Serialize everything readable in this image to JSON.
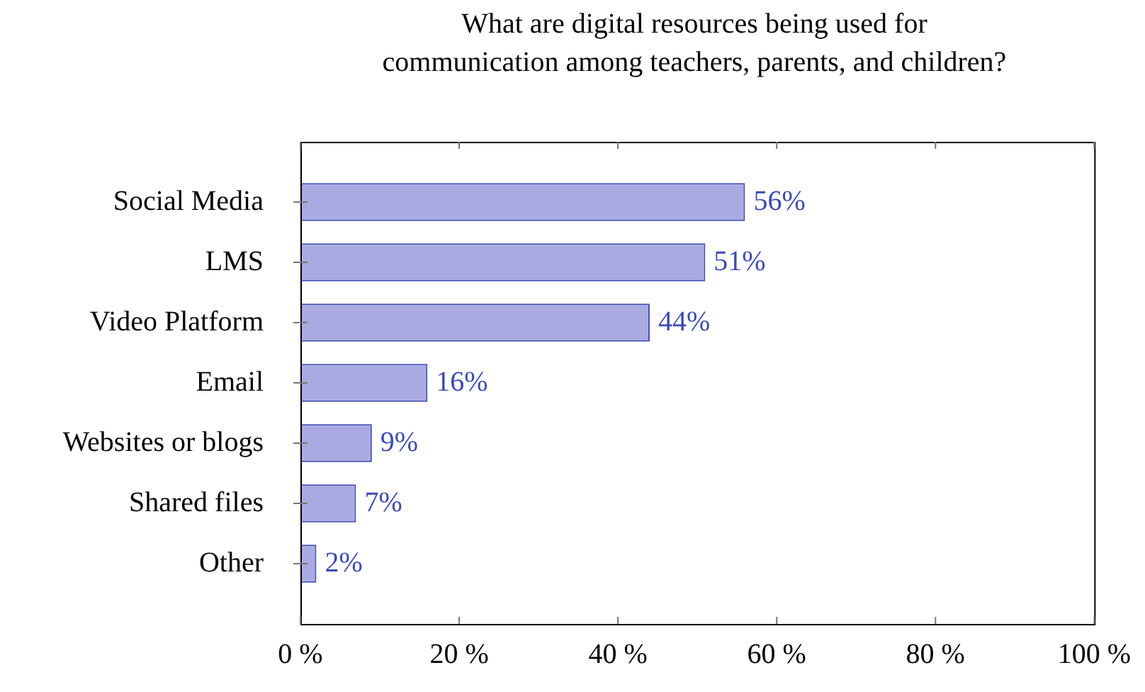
{
  "chart_data": {
    "type": "bar",
    "orientation": "horizontal",
    "title": "What are digital resources being used for\ncommunication among teachers, parents, and children?",
    "categories": [
      "Social Media",
      "LMS",
      "Video Platform",
      "Email",
      "Websites or blogs",
      "Shared files",
      "Other"
    ],
    "values": [
      56,
      51,
      44,
      16,
      9,
      7,
      2
    ],
    "value_labels": [
      "56%",
      "51%",
      "44%",
      "16%",
      "9%",
      "7%",
      "2%"
    ],
    "color": "#aaaae2",
    "xlim": [
      0,
      100
    ],
    "xticks": [
      {
        "value": 0,
        "label": "0 %"
      },
      {
        "value": 20,
        "label": "20 %"
      },
      {
        "value": 40,
        "label": "40 %"
      },
      {
        "value": 60,
        "label": "60 %"
      },
      {
        "value": 80,
        "label": "80 %"
      },
      {
        "value": 100,
        "label": "100 %"
      }
    ],
    "grid": false,
    "legend": false
  }
}
